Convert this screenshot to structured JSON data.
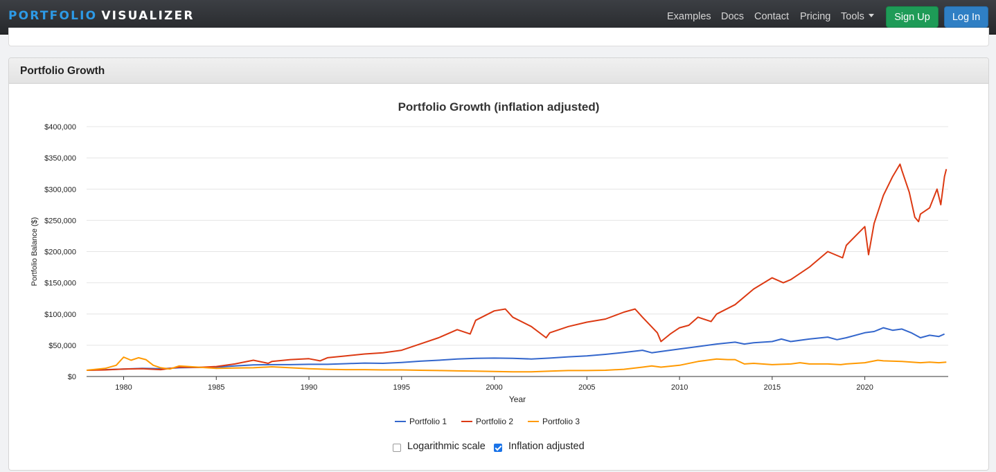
{
  "navbar": {
    "brand_part1": "PORTFOLIO",
    "brand_part2": "VISUALIZER",
    "links": [
      "Examples",
      "Docs",
      "Contact",
      "Pricing",
      "Tools"
    ],
    "signup_label": "Sign Up",
    "login_label": "Log In"
  },
  "panel": {
    "heading": "Portfolio Growth"
  },
  "options": {
    "log_scale_label": "Logarithmic scale",
    "log_scale_checked": false,
    "inflation_label": "Inflation adjusted",
    "inflation_checked": true
  },
  "chart_data": {
    "type": "line",
    "title": "Portfolio Growth (inflation adjusted)",
    "xlabel": "Year",
    "ylabel": "Portfolio Balance ($)",
    "xlim": [
      1978,
      2024.5
    ],
    "ylim": [
      0,
      400000
    ],
    "x_ticks": [
      1980,
      1985,
      1990,
      1995,
      2000,
      2005,
      2010,
      2015,
      2020
    ],
    "y_ticks": [
      0,
      50000,
      100000,
      150000,
      200000,
      250000,
      300000,
      350000,
      400000
    ],
    "y_tick_labels": [
      "$0",
      "$50,000",
      "$100,000",
      "$150,000",
      "$200,000",
      "$250,000",
      "$300,000",
      "$350,000",
      "$400,000"
    ],
    "grid": true,
    "legend_position": "bottom",
    "series": [
      {
        "name": "Portfolio 1",
        "color": "#3366cc",
        "points": [
          [
            1978,
            10000
          ],
          [
            1979,
            11000
          ],
          [
            1980,
            12000
          ],
          [
            1981,
            13000
          ],
          [
            1982,
            12500
          ],
          [
            1983,
            14000
          ],
          [
            1984,
            14500
          ],
          [
            1985,
            15000
          ],
          [
            1986,
            17000
          ],
          [
            1987,
            18500
          ],
          [
            1988,
            19000
          ],
          [
            1989,
            19000
          ],
          [
            1990,
            19500
          ],
          [
            1991,
            19500
          ],
          [
            1992,
            20500
          ],
          [
            1993,
            21500
          ],
          [
            1994,
            21000
          ],
          [
            1995,
            22500
          ],
          [
            1996,
            24500
          ],
          [
            1997,
            26000
          ],
          [
            1998,
            28000
          ],
          [
            1999,
            29000
          ],
          [
            2000,
            29500
          ],
          [
            2001,
            29000
          ],
          [
            2002,
            28000
          ],
          [
            2003,
            29500
          ],
          [
            2004,
            31500
          ],
          [
            2005,
            33000
          ],
          [
            2006,
            35500
          ],
          [
            2007,
            38500
          ],
          [
            2008,
            42000
          ],
          [
            2008.5,
            38000
          ],
          [
            2009,
            40000
          ],
          [
            2010,
            44000
          ],
          [
            2011,
            48000
          ],
          [
            2012,
            52000
          ],
          [
            2013,
            55000
          ],
          [
            2013.5,
            52000
          ],
          [
            2014,
            54000
          ],
          [
            2015,
            56000
          ],
          [
            2015.5,
            60000
          ],
          [
            2016,
            56000
          ],
          [
            2017,
            60000
          ],
          [
            2018,
            63000
          ],
          [
            2018.5,
            59000
          ],
          [
            2019,
            62000
          ],
          [
            2020,
            70000
          ],
          [
            2020.5,
            72000
          ],
          [
            2021,
            78000
          ],
          [
            2021.5,
            74000
          ],
          [
            2022,
            76000
          ],
          [
            2022.5,
            70000
          ],
          [
            2023,
            62000
          ],
          [
            2023.5,
            66000
          ],
          [
            2024,
            64000
          ],
          [
            2024.3,
            68000
          ]
        ]
      },
      {
        "name": "Portfolio 2",
        "color": "#dc3912",
        "points": [
          [
            1978,
            10000
          ],
          [
            1979,
            10500
          ],
          [
            1980,
            12000
          ],
          [
            1981,
            12500
          ],
          [
            1982,
            11000
          ],
          [
            1983,
            15000
          ],
          [
            1984,
            14500
          ],
          [
            1985,
            16000
          ],
          [
            1986,
            20000
          ],
          [
            1987,
            26000
          ],
          [
            1987.8,
            21000
          ],
          [
            1988,
            24000
          ],
          [
            1989,
            27000
          ],
          [
            1990,
            28500
          ],
          [
            1990.6,
            25000
          ],
          [
            1991,
            30000
          ],
          [
            1992,
            33000
          ],
          [
            1993,
            36000
          ],
          [
            1994,
            38000
          ],
          [
            1995,
            42000
          ],
          [
            1996,
            52000
          ],
          [
            1997,
            62000
          ],
          [
            1998,
            75000
          ],
          [
            1998.7,
            68000
          ],
          [
            1999,
            90000
          ],
          [
            2000,
            105000
          ],
          [
            2000.6,
            108000
          ],
          [
            2001,
            95000
          ],
          [
            2002,
            80000
          ],
          [
            2002.8,
            62000
          ],
          [
            2003,
            70000
          ],
          [
            2004,
            80000
          ],
          [
            2005,
            87000
          ],
          [
            2006,
            92000
          ],
          [
            2007,
            103000
          ],
          [
            2007.6,
            108000
          ],
          [
            2008,
            95000
          ],
          [
            2008.8,
            70000
          ],
          [
            2009,
            56000
          ],
          [
            2009.5,
            68000
          ],
          [
            2010,
            78000
          ],
          [
            2010.5,
            82000
          ],
          [
            2011,
            95000
          ],
          [
            2011.7,
            88000
          ],
          [
            2012,
            100000
          ],
          [
            2013,
            115000
          ],
          [
            2014,
            140000
          ],
          [
            2015,
            158000
          ],
          [
            2015.6,
            150000
          ],
          [
            2016,
            155000
          ],
          [
            2017,
            175000
          ],
          [
            2018,
            200000
          ],
          [
            2018.8,
            190000
          ],
          [
            2019,
            210000
          ],
          [
            2019.5,
            225000
          ],
          [
            2020,
            240000
          ],
          [
            2020.2,
            195000
          ],
          [
            2020.5,
            245000
          ],
          [
            2021,
            290000
          ],
          [
            2021.5,
            320000
          ],
          [
            2021.9,
            340000
          ],
          [
            2022,
            330000
          ],
          [
            2022.4,
            295000
          ],
          [
            2022.7,
            255000
          ],
          [
            2022.9,
            248000
          ],
          [
            2023,
            260000
          ],
          [
            2023.5,
            270000
          ],
          [
            2023.9,
            300000
          ],
          [
            2024.1,
            275000
          ],
          [
            2024.3,
            320000
          ],
          [
            2024.4,
            332000
          ]
        ]
      },
      {
        "name": "Portfolio 3",
        "color": "#ff9900",
        "points": [
          [
            1978,
            10000
          ],
          [
            1979,
            13000
          ],
          [
            1979.6,
            18000
          ],
          [
            1980,
            31000
          ],
          [
            1980.4,
            26000
          ],
          [
            1980.8,
            30000
          ],
          [
            1981.2,
            27000
          ],
          [
            1981.6,
            18000
          ],
          [
            1982,
            14000
          ],
          [
            1982.5,
            12000
          ],
          [
            1983,
            17000
          ],
          [
            1984,
            15000
          ],
          [
            1985,
            13000
          ],
          [
            1986,
            13500
          ],
          [
            1987,
            14000
          ],
          [
            1988,
            15500
          ],
          [
            1989,
            14000
          ],
          [
            1990,
            12500
          ],
          [
            1991,
            11500
          ],
          [
            1992,
            11000
          ],
          [
            1993,
            11000
          ],
          [
            1994,
            10500
          ],
          [
            1995,
            10500
          ],
          [
            1996,
            10000
          ],
          [
            1997,
            9500
          ],
          [
            1998,
            9000
          ],
          [
            1999,
            8500
          ],
          [
            2000,
            8000
          ],
          [
            2001,
            7500
          ],
          [
            2002,
            7500
          ],
          [
            2003,
            8500
          ],
          [
            2004,
            9500
          ],
          [
            2005,
            9500
          ],
          [
            2006,
            10000
          ],
          [
            2007,
            11500
          ],
          [
            2008,
            15000
          ],
          [
            2008.5,
            17000
          ],
          [
            2009,
            15000
          ],
          [
            2010,
            18000
          ],
          [
            2011,
            24000
          ],
          [
            2011.5,
            26000
          ],
          [
            2012,
            28000
          ],
          [
            2012.6,
            27000
          ],
          [
            2013,
            27000
          ],
          [
            2013.5,
            20000
          ],
          [
            2014,
            21000
          ],
          [
            2015,
            19000
          ],
          [
            2016,
            20000
          ],
          [
            2016.5,
            22000
          ],
          [
            2017,
            20000
          ],
          [
            2018,
            20000
          ],
          [
            2018.7,
            19000
          ],
          [
            2019,
            20000
          ],
          [
            2020,
            22000
          ],
          [
            2020.7,
            26000
          ],
          [
            2021,
            25000
          ],
          [
            2022,
            24000
          ],
          [
            2023,
            22000
          ],
          [
            2023.5,
            23000
          ],
          [
            2024,
            22000
          ],
          [
            2024.4,
            23000
          ]
        ]
      }
    ]
  }
}
